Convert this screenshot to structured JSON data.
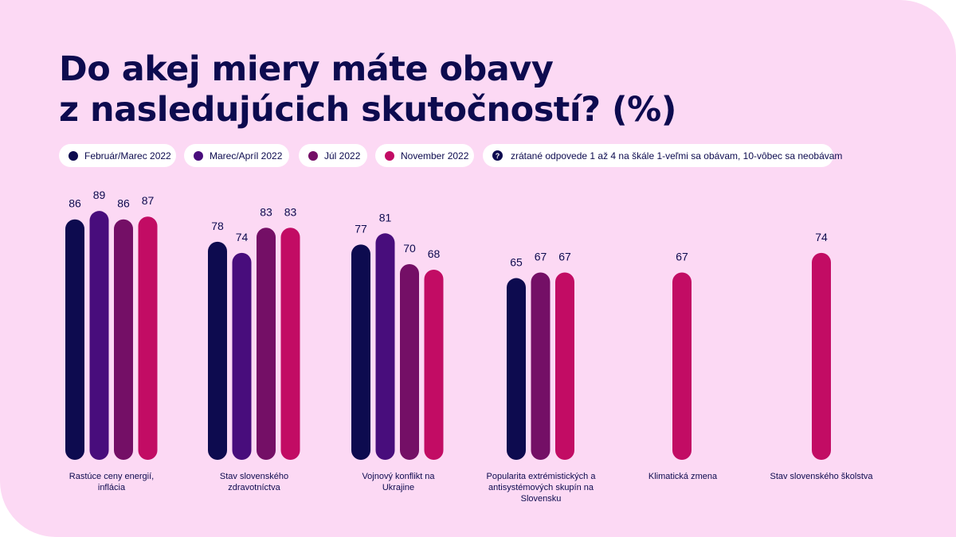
{
  "chart_data": {
    "type": "bar",
    "title_lines": [
      "Do akej miery máte obavy",
      "z nasledujúcich skutočností? (%)"
    ],
    "note": "zrátané odpovede 1 až 4 na škále 1-veľmi sa obávam, 10-vôbec sa neobávam",
    "categories": [
      [
        "Rastúce ceny energií,",
        "inflácia"
      ],
      [
        "Stav slovenského",
        "zdravotníctva"
      ],
      [
        "Vojnový konflikt na",
        "Ukrajine"
      ],
      [
        "Popularita extrémistických a",
        "antisystémových skupín na",
        "Slovensku"
      ],
      [
        "Klimatická zmena"
      ],
      [
        "Stav slovenského školstva"
      ]
    ],
    "series": [
      {
        "name": "Február/Marec 2022",
        "color": "#0d0b4f",
        "values": [
          86,
          78,
          77,
          65,
          null,
          null
        ]
      },
      {
        "name": "Marec/Apríl 2022",
        "color": "#480d7c",
        "values": [
          89,
          74,
          81,
          null,
          null,
          null
        ]
      },
      {
        "name": "Júl 2022",
        "color": "#740f66",
        "values": [
          86,
          83,
          70,
          67,
          null,
          null
        ]
      },
      {
        "name": "November 2022",
        "color": "#c20c64",
        "values": [
          87,
          83,
          68,
          67,
          67,
          74
        ]
      }
    ],
    "ylim": [
      0,
      100
    ],
    "grid": false,
    "legend_position": "top"
  }
}
